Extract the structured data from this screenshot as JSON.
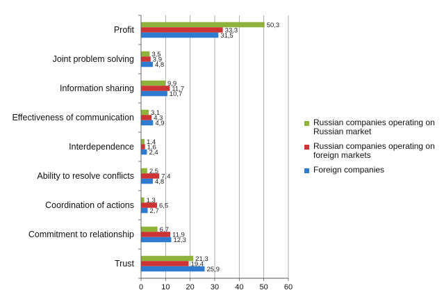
{
  "chart_data": {
    "type": "bar",
    "orientation": "horizontal",
    "categories": [
      "Profit",
      "Joint problem solving",
      "Information sharing",
      "Effectiveness of communication",
      "Interdependence",
      "Ability to resolve conflicts",
      "Coordination of actions",
      "Commitment to relationship",
      "Trust"
    ],
    "series": [
      {
        "name": "Russian companies operating on Russian market",
        "color": "#8db33a",
        "values": [
          50.3,
          3.5,
          9.9,
          3.1,
          1.4,
          2.5,
          1.3,
          6.7,
          21.3
        ],
        "labels": [
          "50,3",
          "3,5",
          "9,9",
          "3,1",
          "1,4",
          "2,5",
          "1,3",
          "6,7",
          "21,3"
        ]
      },
      {
        "name": "Russian companies operating on foreign markets",
        "color": "#cc3333",
        "values": [
          33.3,
          3.9,
          11.7,
          4.3,
          1.6,
          7.4,
          6.5,
          11.9,
          19.4
        ],
        "labels": [
          "33,3",
          "3,9",
          "11,7",
          "4,3",
          "1,6",
          "7,4",
          "6,5",
          "11,9",
          "19,4"
        ]
      },
      {
        "name": "Foreign companies",
        "color": "#2e7bd0",
        "values": [
          31.5,
          4.8,
          10.7,
          4.9,
          2.4,
          4.8,
          2.7,
          12.3,
          25.9
        ],
        "labels": [
          "31,5",
          "4,8",
          "10,7",
          "4,9",
          "2,4",
          "4,8",
          "2,7",
          "12,3",
          "25,9"
        ]
      }
    ],
    "xlim": [
      0,
      60
    ],
    "xticks": [
      "0",
      "10",
      "20",
      "30",
      "40",
      "50",
      "60"
    ],
    "grid": true,
    "legend_position": "right"
  }
}
